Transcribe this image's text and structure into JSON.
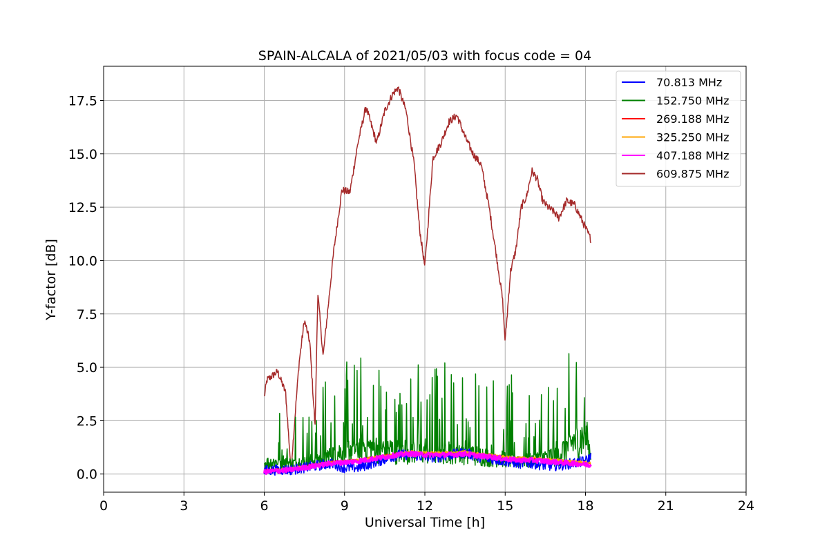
{
  "chart_data": {
    "type": "line",
    "title": "SPAIN-ALCALA of 2021/05/03 with focus code = 04",
    "xlabel": "Universal Time [h]",
    "ylabel": "Y-factor [dB]",
    "xlim": [
      0,
      24
    ],
    "ylim": [
      -0.85,
      19.1
    ],
    "xticks": [
      0,
      3,
      6,
      9,
      12,
      15,
      18,
      21,
      24
    ],
    "yticks": [
      0.0,
      2.5,
      5.0,
      7.5,
      10.0,
      12.5,
      15.0,
      17.5
    ],
    "ytick_labels": [
      "0.0",
      "2.5",
      "5.0",
      "7.5",
      "10.0",
      "12.5",
      "15.0",
      "17.5"
    ],
    "grid": true,
    "legend_position": "upper right",
    "series": [
      {
        "name": "70.813 MHz",
        "color": "#0000ff",
        "x": [
          6.0,
          6.5,
          7.0,
          7.5,
          8.0,
          8.5,
          9.0,
          9.5,
          10.0,
          10.5,
          11.0,
          11.5,
          12.0,
          12.5,
          13.0,
          13.5,
          14.0,
          14.5,
          15.0,
          15.5,
          16.0,
          16.5,
          17.0,
          17.5,
          18.0,
          18.2
        ],
        "y": [
          0.15,
          0.2,
          0.2,
          0.3,
          0.4,
          0.5,
          0.3,
          0.3,
          0.5,
          0.7,
          0.9,
          0.9,
          0.8,
          0.8,
          0.9,
          1.0,
          0.8,
          0.7,
          0.6,
          0.5,
          0.5,
          0.4,
          0.4,
          0.5,
          0.6,
          0.8
        ],
        "noise": 0.5
      },
      {
        "name": "152.750 MHz",
        "color": "#008000",
        "x": [
          6.0,
          6.5,
          7.0,
          7.5,
          8.0,
          8.5,
          9.0,
          9.5,
          10.0,
          10.5,
          11.0,
          11.5,
          12.0,
          12.5,
          13.0,
          13.5,
          14.0,
          14.5,
          15.0,
          15.5,
          16.0,
          16.5,
          17.0,
          17.5,
          18.0,
          18.2
        ],
        "y": [
          1.0,
          1.2,
          1.0,
          1.2,
          1.4,
          1.8,
          2.2,
          2.5,
          2.5,
          2.3,
          2.2,
          2.3,
          2.0,
          2.2,
          2.3,
          2.1,
          1.8,
          1.6,
          1.5,
          1.3,
          1.4,
          1.6,
          1.8,
          3.0,
          3.5,
          2.0
        ],
        "noise": 2.6
      },
      {
        "name": "269.188 MHz",
        "color": "#ff0000",
        "x": [
          6.0,
          6.5,
          7.0,
          7.5,
          8.0,
          8.5,
          9.0,
          9.5,
          10.0,
          10.5,
          11.0,
          11.5,
          12.0,
          12.5,
          13.0,
          13.5,
          14.0,
          14.5,
          15.0,
          15.5,
          16.0,
          16.5,
          17.0,
          17.5,
          18.0,
          18.2
        ],
        "y": [
          0.15,
          0.2,
          0.25,
          0.35,
          0.45,
          0.55,
          0.6,
          0.65,
          0.75,
          0.85,
          0.95,
          1.0,
          0.95,
          0.95,
          0.95,
          1.0,
          0.9,
          0.85,
          0.75,
          0.7,
          0.7,
          0.65,
          0.6,
          0.6,
          0.5,
          0.45
        ],
        "noise": 0.12
      },
      {
        "name": "325.250 MHz",
        "color": "#ffa500",
        "x": [
          6.0,
          6.5,
          7.0,
          7.5,
          8.0,
          8.5,
          9.0,
          9.5,
          10.0,
          10.5,
          11.0,
          11.5,
          12.0,
          12.5,
          13.0,
          13.5,
          14.0,
          14.5,
          15.0,
          15.5,
          16.0,
          16.5,
          17.0,
          17.5,
          18.0,
          18.2
        ],
        "y": [
          0.15,
          0.2,
          0.25,
          0.35,
          0.45,
          0.55,
          0.6,
          0.65,
          0.75,
          0.85,
          0.95,
          1.05,
          1.0,
          1.0,
          1.0,
          1.05,
          0.95,
          0.9,
          0.8,
          0.75,
          0.75,
          0.7,
          0.65,
          0.6,
          0.55,
          0.5
        ],
        "noise": 0.12
      },
      {
        "name": "407.188 MHz",
        "color": "#ff00ff",
        "x": [
          6.0,
          6.5,
          7.0,
          7.5,
          8.0,
          8.5,
          9.0,
          9.5,
          10.0,
          10.5,
          11.0,
          11.5,
          12.0,
          12.5,
          13.0,
          13.5,
          14.0,
          14.5,
          15.0,
          15.5,
          16.0,
          16.5,
          17.0,
          17.5,
          18.0,
          18.2
        ],
        "y": [
          0.1,
          0.15,
          0.2,
          0.3,
          0.4,
          0.5,
          0.55,
          0.6,
          0.7,
          0.8,
          0.9,
          0.95,
          0.9,
          0.9,
          0.9,
          0.95,
          0.85,
          0.8,
          0.7,
          0.65,
          0.65,
          0.6,
          0.55,
          0.5,
          0.45,
          0.4
        ],
        "noise": 0.22,
        "width": 3
      },
      {
        "name": "609.875 MHz",
        "color": "#a52a2a",
        "x": [
          6.0,
          6.1,
          6.5,
          6.8,
          7.0,
          7.3,
          7.5,
          7.7,
          7.9,
          8.0,
          8.2,
          8.4,
          8.6,
          8.9,
          9.2,
          9.5,
          9.8,
          10.2,
          10.5,
          10.8,
          11.0,
          11.3,
          11.6,
          11.8,
          12.0,
          12.3,
          12.6,
          12.9,
          13.2,
          13.5,
          13.8,
          14.1,
          14.4,
          14.7,
          14.9,
          15.0,
          15.2,
          15.4,
          15.6,
          15.8,
          16.0,
          16.2,
          16.4,
          16.6,
          16.8,
          17.0,
          17.3,
          17.6,
          17.9,
          18.2
        ],
        "y": [
          3.6,
          4.4,
          4.8,
          3.8,
          0.2,
          5.2,
          7.2,
          6.2,
          2.2,
          8.5,
          5.5,
          8.0,
          10.5,
          13.3,
          13.2,
          15.5,
          17.2,
          15.5,
          17.0,
          17.8,
          18.1,
          17.0,
          14.5,
          11.5,
          9.7,
          14.8,
          15.5,
          16.5,
          16.8,
          15.8,
          15.0,
          14.5,
          12.5,
          10.0,
          8.2,
          6.2,
          9.5,
          10.5,
          12.5,
          13.0,
          14.2,
          13.8,
          12.8,
          12.5,
          12.3,
          12.0,
          12.8,
          12.6,
          11.8,
          11.0
        ],
        "noise": 0.35
      }
    ]
  }
}
